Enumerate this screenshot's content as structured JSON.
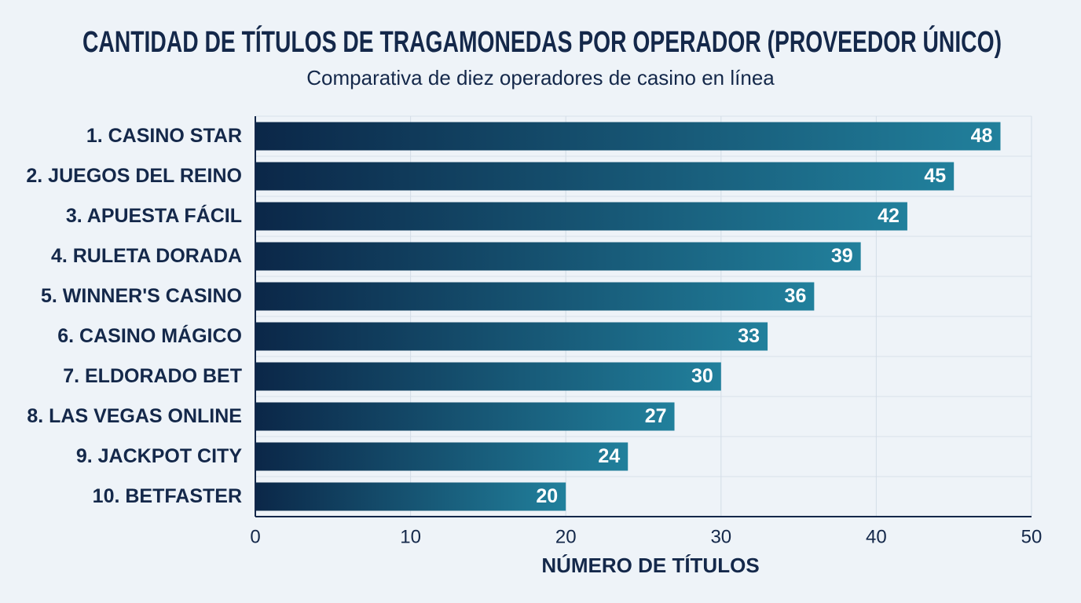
{
  "chart_data": {
    "type": "hbar",
    "title": "CANTIDAD DE TÍTULOS DE TRAGAMONEDAS POR OPERADOR (PROVEEDOR ÚNICO)",
    "subtitle": "Comparativa de diez operadores de casino en línea",
    "x_label": "NÚMERO DE TÍTULOS",
    "categories": [
      "1. CASINO STAR",
      "2. JUEGOS DEL REINO",
      "3. APUESTA FÁCIL",
      "4. RULETA DORADA",
      "5. WINNER'S CASINO",
      "6. CASINO MÁGICO",
      "7. ELDORADO BET",
      "8. LAS VEGAS ONLINE",
      "9. JACKPOT CITY",
      "10. BETFASTER"
    ],
    "values": [
      48,
      45,
      42,
      39,
      36,
      33,
      30,
      27,
      24,
      20
    ],
    "gradient": [
      "#0b2748",
      "#21809c"
    ],
    "xlim": [
      0,
      50
    ],
    "xticks": [
      0,
      10,
      20,
      30,
      40,
      50
    ],
    "grid": true
  }
}
